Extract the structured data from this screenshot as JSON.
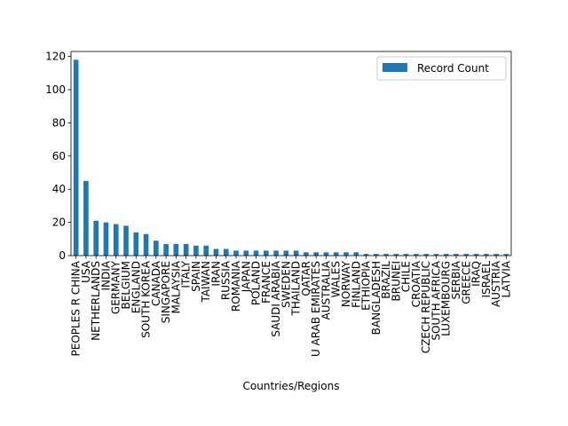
{
  "chart_data": {
    "type": "bar",
    "xlabel": "Countries/Regions",
    "ylabel": "",
    "ylim": [
      0,
      123
    ],
    "yticks": [
      0,
      20,
      40,
      60,
      80,
      100,
      120
    ],
    "grid": false,
    "legend_position": "top-right",
    "bar_color": "#1f77b4",
    "categories": [
      "PEOPLES R CHINA",
      "USA",
      "NETHERLANDS",
      "INDIA",
      "GERMANY",
      "BELGIUM",
      "ENGLAND",
      "SOUTH KOREA",
      "CANADA",
      "SINGAPORE",
      "MALAYSIA",
      "ITALY",
      "SPAIN",
      "TAIWAN",
      "IRAN",
      "RUSSIA",
      "ROMANIA",
      "JAPAN",
      "POLAND",
      "FRANCE",
      "SAUDI ARABIA",
      "SWEDEN",
      "THAILAND",
      "QATAR",
      "U ARAB EMIRATES",
      "AUSTRALIA",
      "WALES",
      "NORWAY",
      "FINLAND",
      "ETHIOPIA",
      "BANGLADESH",
      "BRAZIL",
      "BRUNEI",
      "CHILE",
      "CROATIA",
      "CZECH REPUBLIC",
      "SOUTH AFRICA",
      "LUXEMBOURG",
      "SERBIA",
      "GREECE",
      "IRAQ",
      "ISRAEL",
      "AUSTRIA",
      "LATVIA"
    ],
    "series": [
      {
        "name": "Record Count",
        "values": [
          118,
          45,
          21,
          20,
          19,
          18,
          14,
          13,
          9,
          7,
          7,
          7,
          6,
          6,
          4,
          4,
          3,
          3,
          3,
          3,
          3,
          3,
          3,
          2,
          2,
          2,
          2,
          2,
          2,
          1,
          1,
          1,
          1,
          1,
          1,
          1,
          1,
          1,
          1,
          1,
          1,
          1,
          1,
          1
        ]
      }
    ]
  }
}
